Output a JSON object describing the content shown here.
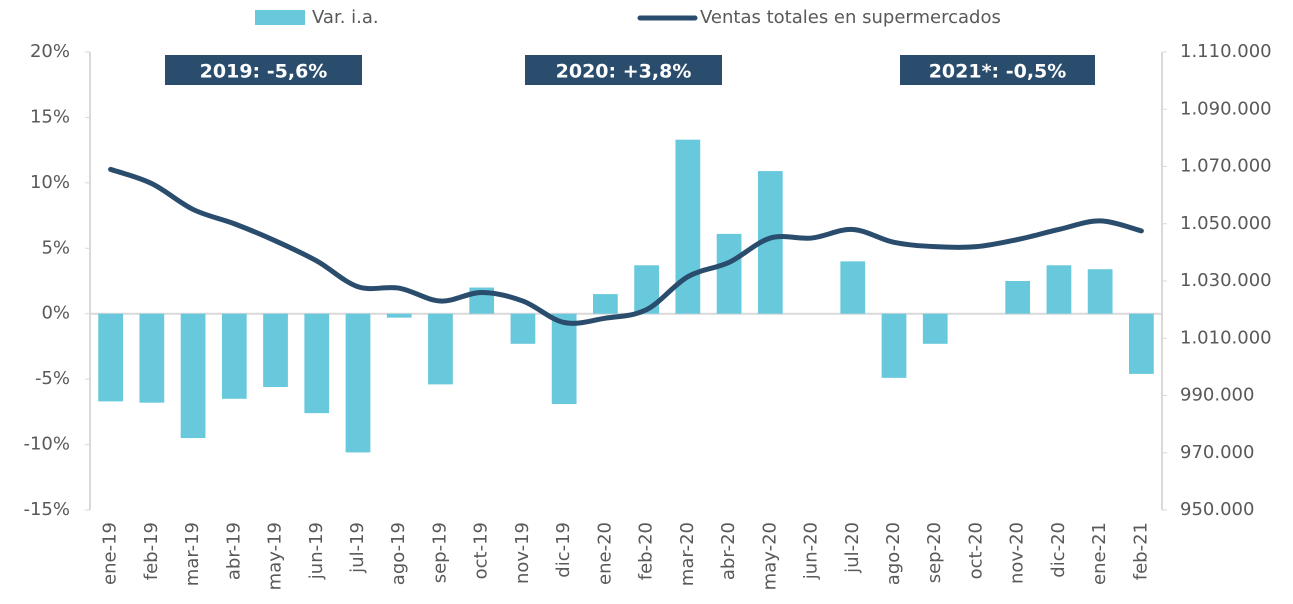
{
  "chart_data": {
    "type": "bar_line",
    "categories": [
      "ene-19",
      "feb-19",
      "mar-19",
      "abr-19",
      "may-19",
      "jun-19",
      "jul-19",
      "ago-19",
      "sep-19",
      "oct-19",
      "nov-19",
      "dic-19",
      "ene-20",
      "feb-20",
      "mar-20",
      "abr-20",
      "may-20",
      "jun-20",
      "jul-20",
      "ago-20",
      "sep-20",
      "oct-20",
      "nov-20",
      "dic-20",
      "ene-21",
      "feb-21"
    ],
    "series": [
      {
        "name": "Var. i.a.",
        "type": "bar",
        "color": "#68c8dc",
        "values": [
          -6.7,
          -6.8,
          -9.5,
          -6.5,
          -5.6,
          -7.6,
          -10.6,
          -0.3,
          -5.4,
          2.0,
          -2.3,
          -6.9,
          1.5,
          3.7,
          13.3,
          6.1,
          10.9,
          0,
          4.0,
          -4.9,
          -2.3,
          0,
          2.5,
          3.7,
          3.4,
          -4.6
        ]
      },
      {
        "name": "Ventas totales en supermercados",
        "type": "line",
        "axis": "y2",
        "color": "#2a4d6e",
        "values": [
          1069000,
          1064000,
          1055000,
          1050000,
          1044000,
          1037000,
          1028000,
          1027500,
          1023000,
          1026000,
          1023000,
          1015500,
          1017000,
          1020000,
          1031500,
          1036500,
          1045000,
          1045000,
          1048000,
          1043500,
          1042000,
          1042000,
          1044500,
          1048000,
          1051000,
          1047500
        ]
      }
    ],
    "ylim": [
      -15,
      20
    ],
    "yticks": [
      {
        "value": -15,
        "label": "-15%"
      },
      {
        "value": -10,
        "label": "-10%"
      },
      {
        "value": -5,
        "label": "-5%"
      },
      {
        "value": 0,
        "label": "0%"
      },
      {
        "value": 5,
        "label": "5%"
      },
      {
        "value": 10,
        "label": "10%"
      },
      {
        "value": 15,
        "label": "15%"
      },
      {
        "value": 20,
        "label": "20%"
      }
    ],
    "y2lim": [
      950000,
      1110000
    ],
    "y2ticks": [
      {
        "value": 950000,
        "label": "950.000"
      },
      {
        "value": 970000,
        "label": "970.000"
      },
      {
        "value": 990000,
        "label": "990.000"
      },
      {
        "value": 1010000,
        "label": "1.010.000"
      },
      {
        "value": 1030000,
        "label": "1.030.000"
      },
      {
        "value": 1050000,
        "label": "1.050.000"
      },
      {
        "value": 1070000,
        "label": "1.070.000"
      },
      {
        "value": 1090000,
        "label": "1.090.000"
      },
      {
        "value": 1110000,
        "label": "1.110.000"
      }
    ],
    "annotations": [
      "2019:  -5,6%",
      "2020:  +3,8%",
      "2021*:  -0,5%"
    ],
    "legend": "top"
  }
}
